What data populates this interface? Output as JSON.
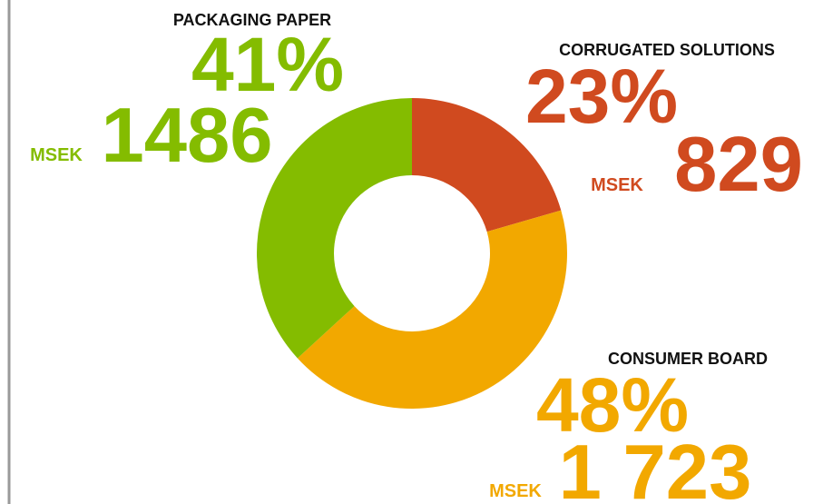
{
  "chart_data": {
    "type": "donut",
    "unit": "MSEK",
    "categories": [
      "CORRUGATED SOLUTIONS",
      "CONSUMER BOARD",
      "PACKAGING PAPER"
    ],
    "values": [
      829,
      1723,
      1486
    ],
    "value_labels": [
      "829",
      "1 723",
      "1486"
    ],
    "shares": [
      23,
      48,
      41
    ],
    "share_labels": [
      "23%",
      "48%",
      "41%"
    ],
    "colors": [
      "#d04a1f",
      "#f2a800",
      "#84bc00"
    ]
  }
}
